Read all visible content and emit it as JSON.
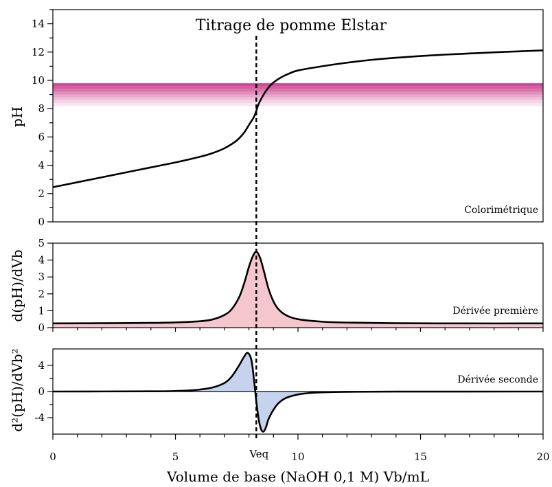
{
  "chart_data": {
    "type": "line",
    "title": "Titrage de pomme Elstar",
    "xlabel": "Volume de base (NaOH 0,1 M) Vb/mL",
    "xlim": [
      0,
      20
    ],
    "x_ticks": [
      "0",
      "5",
      "10",
      "15",
      "20"
    ],
    "equivalence": {
      "label": "Veq",
      "x": 8.3
    },
    "panels": [
      {
        "label": "Colorimétrique",
        "ylabel": "pH",
        "ylim": [
          0,
          15
        ],
        "y_ticks": [
          "0",
          "2",
          "4",
          "6",
          "8",
          "10",
          "12",
          "14"
        ],
        "indicator_band": {
          "color": "#cc3f8d",
          "ph_from": 8.2,
          "ph_to": 9.8
        },
        "series": [
          {
            "x": [
              0,
              1,
              2,
              3,
              4,
              5,
              6,
              6.5,
              7,
              7.5,
              7.8,
              8.0,
              8.2,
              8.3,
              8.4,
              8.6,
              8.8,
              9.0,
              9.3,
              9.6,
              10,
              11,
              12,
              13,
              14,
              15,
              16,
              17,
              18,
              19,
              20
            ],
            "values": [
              2.45,
              2.8,
              3.15,
              3.5,
              3.85,
              4.2,
              4.6,
              4.85,
              5.2,
              5.75,
              6.3,
              6.85,
              7.4,
              7.85,
              8.35,
              9.0,
              9.5,
              9.85,
              10.2,
              10.45,
              10.7,
              11.0,
              11.25,
              11.45,
              11.6,
              11.72,
              11.82,
              11.9,
              11.98,
              12.05,
              12.12
            ]
          }
        ]
      },
      {
        "label": "Dérivée première",
        "ylabel": "d(pH)/dVb",
        "ylim": [
          0,
          5
        ],
        "y_ticks": [
          "0",
          "1",
          "2",
          "3",
          "4",
          "5"
        ],
        "fill_color": "#f6c6ce",
        "series": [
          {
            "x": [
              0,
              2,
              4,
              5,
              6,
              6.5,
              7,
              7.3,
              7.6,
              7.8,
              8.0,
              8.15,
              8.3,
              8.45,
              8.6,
              8.8,
              9.0,
              9.2,
              9.5,
              10,
              11,
              12,
              14,
              17,
              20
            ],
            "values": [
              0.25,
              0.26,
              0.28,
              0.31,
              0.38,
              0.48,
              0.75,
              1.1,
              1.8,
              2.6,
              3.6,
              4.2,
              4.5,
              4.15,
              3.4,
              2.3,
              1.55,
              1.1,
              0.75,
              0.5,
              0.35,
              0.3,
              0.26,
              0.25,
              0.25
            ]
          }
        ]
      },
      {
        "label": "Dérivée seconde",
        "ylabel": "d²(pH)/dVb²",
        "ylim": [
          -6.5,
          6.5
        ],
        "y_ticks": [
          "4",
          "0",
          "-4"
        ],
        "fill_color": "#c6d3ee",
        "series": [
          {
            "x": [
              0,
              4,
              5,
              5.5,
              6,
              6.5,
              7,
              7.3,
              7.6,
              7.8,
              7.95,
              8.1,
              8.2,
              8.3,
              8.4,
              8.5,
              8.6,
              8.7,
              8.8,
              9.0,
              9.2,
              9.5,
              10,
              10.5,
              11,
              12,
              14,
              20
            ],
            "values": [
              0,
              0.03,
              0.08,
              0.15,
              0.3,
              0.6,
              1.3,
              2.3,
              4.0,
              5.3,
              5.9,
              4.8,
              2.0,
              -1.5,
              -4.3,
              -5.8,
              -6.1,
              -5.4,
              -4.2,
              -2.8,
              -1.8,
              -1.0,
              -0.45,
              -0.22,
              -0.12,
              -0.05,
              -0.01,
              0
            ]
          }
        ]
      }
    ]
  }
}
